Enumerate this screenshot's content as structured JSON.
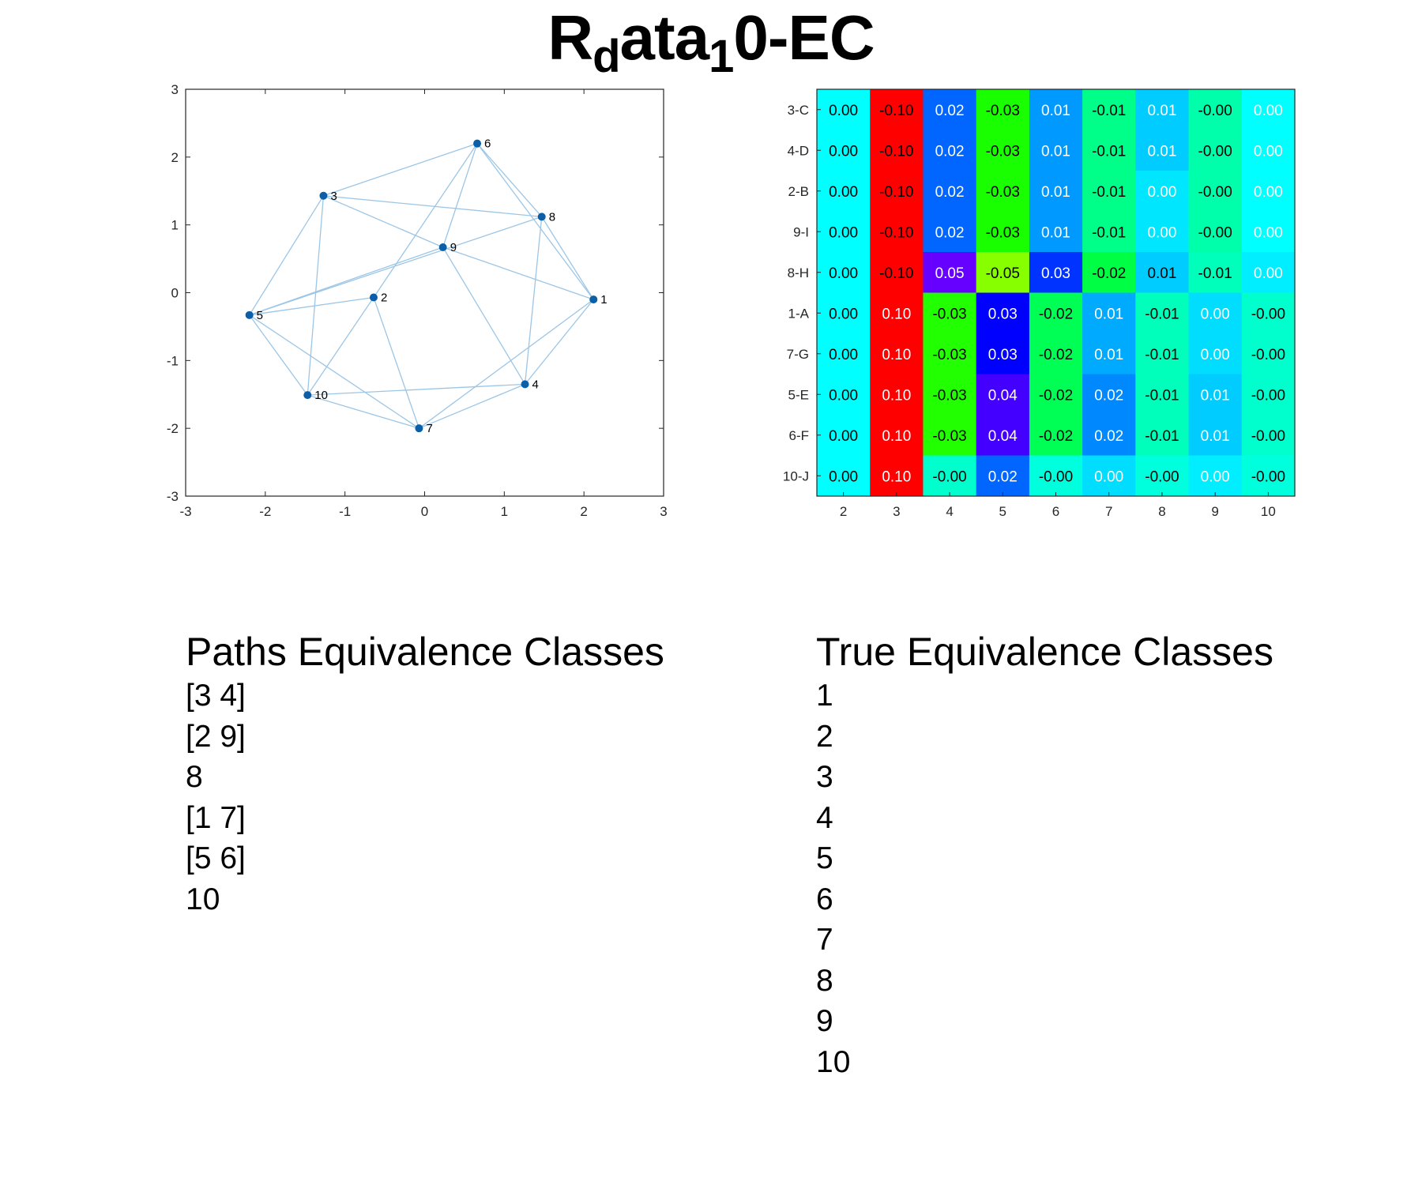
{
  "title_main": "R",
  "title_sub1": "d",
  "title_mid": "ata",
  "title_sub2": "1",
  "title_end": "0-EC",
  "colors": {
    "node": "#0b5fa8",
    "edge": "#9cc6e6",
    "axis": "#262626"
  },
  "chart_data": [
    {
      "type": "scatter",
      "xlim": [
        -3,
        3
      ],
      "ylim": [
        -3,
        3
      ],
      "xticks": [
        "-3",
        "-2",
        "-1",
        "0",
        "1",
        "2",
        "3"
      ],
      "yticks": [
        "-3",
        "-2",
        "-1",
        "0",
        "1",
        "2",
        "3"
      ],
      "grid": false,
      "nodes": [
        {
          "label": "1",
          "x": 2.12,
          "y": -0.1
        },
        {
          "label": "2",
          "x": -0.64,
          "y": -0.07
        },
        {
          "label": "3",
          "x": -1.27,
          "y": 1.43
        },
        {
          "label": "4",
          "x": 1.26,
          "y": -1.35
        },
        {
          "label": "5",
          "x": -2.2,
          "y": -0.33
        },
        {
          "label": "6",
          "x": 0.66,
          "y": 2.2
        },
        {
          "label": "7",
          "x": -0.07,
          "y": -2.0
        },
        {
          "label": "8",
          "x": 1.47,
          "y": 1.12
        },
        {
          "label": "9",
          "x": 0.23,
          "y": 0.67
        },
        {
          "label": "10",
          "x": -1.47,
          "y": -1.51
        }
      ],
      "edges": [
        [
          "3",
          "6"
        ],
        [
          "3",
          "8"
        ],
        [
          "3",
          "9"
        ],
        [
          "3",
          "5"
        ],
        [
          "3",
          "10"
        ],
        [
          "6",
          "9"
        ],
        [
          "6",
          "2"
        ],
        [
          "6",
          "8"
        ],
        [
          "6",
          "1"
        ],
        [
          "8",
          "1"
        ],
        [
          "8",
          "4"
        ],
        [
          "8",
          "5"
        ],
        [
          "9",
          "1"
        ],
        [
          "9",
          "4"
        ],
        [
          "9",
          "5"
        ],
        [
          "5",
          "2"
        ],
        [
          "5",
          "10"
        ],
        [
          "5",
          "7"
        ],
        [
          "2",
          "10"
        ],
        [
          "2",
          "7"
        ],
        [
          "1",
          "4"
        ],
        [
          "1",
          "7"
        ],
        [
          "4",
          "10"
        ],
        [
          "4",
          "7"
        ],
        [
          "10",
          "7"
        ]
      ]
    },
    {
      "type": "heatmap",
      "columns": [
        "2",
        "3",
        "4",
        "5",
        "6",
        "7",
        "8",
        "9",
        "10"
      ],
      "rows": [
        "3-C",
        "4-D",
        "2-B",
        "9-I",
        "8-H",
        "1-A",
        "7-G",
        "5-E",
        "6-F",
        "10-J"
      ],
      "values": [
        [
          0.0,
          -0.1,
          0.02,
          -0.03,
          0.01,
          -0.01,
          0.01,
          -0.0,
          0.0
        ],
        [
          0.0,
          -0.1,
          0.02,
          -0.03,
          0.01,
          -0.01,
          0.01,
          -0.0,
          0.0
        ],
        [
          0.0,
          -0.1,
          0.02,
          -0.03,
          0.01,
          -0.01,
          0.0,
          -0.0,
          0.0
        ],
        [
          0.0,
          -0.1,
          0.02,
          -0.03,
          0.01,
          -0.01,
          0.0,
          -0.0,
          0.0
        ],
        [
          0.0,
          -0.1,
          0.05,
          -0.05,
          0.03,
          -0.02,
          0.01,
          -0.01,
          0.0
        ],
        [
          0.0,
          0.1,
          -0.03,
          0.03,
          -0.02,
          0.01,
          -0.01,
          0.0,
          -0.0
        ],
        [
          0.0,
          0.1,
          -0.03,
          0.03,
          -0.02,
          0.01,
          -0.01,
          0.0,
          -0.0
        ],
        [
          0.0,
          0.1,
          -0.03,
          0.04,
          -0.02,
          0.02,
          -0.01,
          0.01,
          -0.0
        ],
        [
          0.0,
          0.1,
          -0.03,
          0.04,
          -0.02,
          0.02,
          -0.01,
          0.01,
          -0.0
        ],
        [
          0.0,
          0.1,
          -0.0,
          0.02,
          -0.0,
          0.0,
          -0.0,
          0.0,
          -0.0
        ]
      ],
      "labels": [
        [
          "0.00",
          "-0.10",
          "0.02",
          "-0.03",
          "0.01",
          "-0.01",
          "0.01",
          "-0.00",
          "0.00"
        ],
        [
          "0.00",
          "-0.10",
          "0.02",
          "-0.03",
          "0.01",
          "-0.01",
          "0.01",
          "-0.00",
          "0.00"
        ],
        [
          "0.00",
          "-0.10",
          "0.02",
          "-0.03",
          "0.01",
          "-0.01",
          "0.00",
          "-0.00",
          "0.00"
        ],
        [
          "0.00",
          "-0.10",
          "0.02",
          "-0.03",
          "0.01",
          "-0.01",
          "0.00",
          "-0.00",
          "0.00"
        ],
        [
          "0.00",
          "-0.10",
          "0.05",
          "-0.05",
          "0.03",
          "-0.02",
          "0.01",
          "-0.01",
          "0.00"
        ],
        [
          "0.00",
          "0.10",
          "-0.03",
          "0.03",
          "-0.02",
          "0.01",
          "-0.01",
          "0.00",
          "-0.00"
        ],
        [
          "0.00",
          "0.10",
          "-0.03",
          "0.03",
          "-0.02",
          "0.01",
          "-0.01",
          "0.00",
          "-0.00"
        ],
        [
          "0.00",
          "0.10",
          "-0.03",
          "0.04",
          "-0.02",
          "0.02",
          "-0.01",
          "0.01",
          "-0.00"
        ],
        [
          "0.00",
          "0.10",
          "-0.03",
          "0.04",
          "-0.02",
          "0.02",
          "-0.01",
          "0.01",
          "-0.00"
        ],
        [
          "0.00",
          "0.10",
          "-0.00",
          "0.02",
          "-0.00",
          "0.00",
          "-0.00",
          "0.00",
          "-0.00"
        ]
      ],
      "cell_colors": [
        [
          "#00ffff",
          "#ff0000",
          "#0066ff",
          "#1aff00",
          "#0099ff",
          "#00ff88",
          "#00ccff",
          "#00ffaa",
          "#00ffff"
        ],
        [
          "#00ffff",
          "#ff0000",
          "#0066ff",
          "#1aff00",
          "#0099ff",
          "#00ff88",
          "#00ccff",
          "#00ffaa",
          "#00ffff"
        ],
        [
          "#00ffff",
          "#ff0000",
          "#0066ff",
          "#1aff00",
          "#0099ff",
          "#00ff88",
          "#00e6ff",
          "#00ffaa",
          "#00ffff"
        ],
        [
          "#00ffff",
          "#ff0000",
          "#0066ff",
          "#1aff00",
          "#0099ff",
          "#00ff88",
          "#00e6ff",
          "#00ffaa",
          "#00ffff"
        ],
        [
          "#00ffff",
          "#ff0000",
          "#6600ff",
          "#88ff00",
          "#0033ff",
          "#00ff44",
          "#00ccff",
          "#00ffbb",
          "#00eeff"
        ],
        [
          "#00ffff",
          "#ff0000",
          "#22ff00",
          "#0000ff",
          "#00ff55",
          "#00aaff",
          "#00ffbb",
          "#00ddff",
          "#00ffcc"
        ],
        [
          "#00ffff",
          "#ff0000",
          "#22ff00",
          "#0000ff",
          "#00ff55",
          "#00aaff",
          "#00ffbb",
          "#00ddff",
          "#00ffcc"
        ],
        [
          "#00ffff",
          "#ff0000",
          "#22ff00",
          "#4400ff",
          "#00ff55",
          "#0088ff",
          "#00ffbb",
          "#00ccff",
          "#00ffcc"
        ],
        [
          "#00ffff",
          "#ff0000",
          "#22ff00",
          "#4400ff",
          "#00ff55",
          "#0088ff",
          "#00ffbb",
          "#00ccff",
          "#00ffcc"
        ],
        [
          "#00ffff",
          "#ff0000",
          "#00ffcc",
          "#0066ff",
          "#00ffdd",
          "#00ddff",
          "#00ffdd",
          "#00eeff",
          "#00ffdd"
        ]
      ],
      "text_colors": [
        [
          "#000000",
          "#000000",
          "#ffffff",
          "#000000",
          "#ffffff",
          "#000000",
          "#ffffff",
          "#000000",
          "#ffffff"
        ],
        [
          "#000000",
          "#000000",
          "#ffffff",
          "#000000",
          "#ffffff",
          "#000000",
          "#ffffff",
          "#000000",
          "#ffffff"
        ],
        [
          "#000000",
          "#000000",
          "#ffffff",
          "#000000",
          "#ffffff",
          "#000000",
          "#ffffff",
          "#000000",
          "#ffffff"
        ],
        [
          "#000000",
          "#000000",
          "#ffffff",
          "#000000",
          "#ffffff",
          "#000000",
          "#ffffff",
          "#000000",
          "#ffffff"
        ],
        [
          "#000000",
          "#000000",
          "#ffffff",
          "#000000",
          "#ffffff",
          "#000000",
          "#000000",
          "#000000",
          "#ffffff"
        ],
        [
          "#000000",
          "#ffffff",
          "#000000",
          "#ffffff",
          "#000000",
          "#ffffff",
          "#000000",
          "#ffffff",
          "#000000"
        ],
        [
          "#000000",
          "#ffffff",
          "#000000",
          "#ffffff",
          "#000000",
          "#ffffff",
          "#000000",
          "#ffffff",
          "#000000"
        ],
        [
          "#000000",
          "#ffffff",
          "#000000",
          "#ffffff",
          "#000000",
          "#ffffff",
          "#000000",
          "#ffffff",
          "#000000"
        ],
        [
          "#000000",
          "#ffffff",
          "#000000",
          "#ffffff",
          "#000000",
          "#ffffff",
          "#000000",
          "#ffffff",
          "#000000"
        ],
        [
          "#000000",
          "#ffffff",
          "#000000",
          "#ffffff",
          "#000000",
          "#ffffff",
          "#000000",
          "#ffffff",
          "#000000"
        ]
      ]
    }
  ],
  "paths_classes": {
    "header": "Paths Equivalence Classes",
    "items": [
      "[3 4]",
      "[2 9]",
      "8",
      "[1 7]",
      "[5 6]",
      "10"
    ]
  },
  "true_classes": {
    "header": "True Equivalence Classes",
    "items": [
      "1",
      "2",
      "3",
      "4",
      "5",
      "6",
      "7",
      "8",
      "9",
      "10"
    ]
  }
}
